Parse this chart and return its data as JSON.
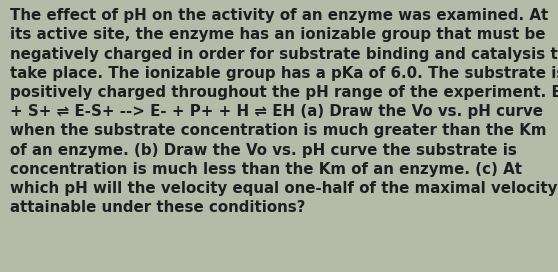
{
  "background_color": "#b5baa9",
  "text_color": "#1e1e1e",
  "font_size": 10.8,
  "font_family": "DejaVu Sans",
  "font_weight": "bold",
  "lines": [
    "The effect of pH on the activity of an enzyme was examined. At",
    "its active site, the enzyme has an ionizable group that must be",
    "negatively charged in order for substrate binding and catalysis to",
    "take place. The ionizable group has a pKa of 6.0. The substrate is",
    "positively charged throughout the pH range of the experiment. E-",
    "+ S+ ⇌ E-S+ --> E- + P+ + H ⇌ EH (a) Draw the Vo vs. pH curve",
    "when the substrate concentration is much greater than the Km",
    "of an enzyme. (b) Draw the Vo vs. pH curve the substrate is",
    "concentration is much less than the Km of an enzyme. (c) At",
    "which pH will the velocity equal one-half of the maximal velocity",
    "attainable under these conditions?"
  ]
}
